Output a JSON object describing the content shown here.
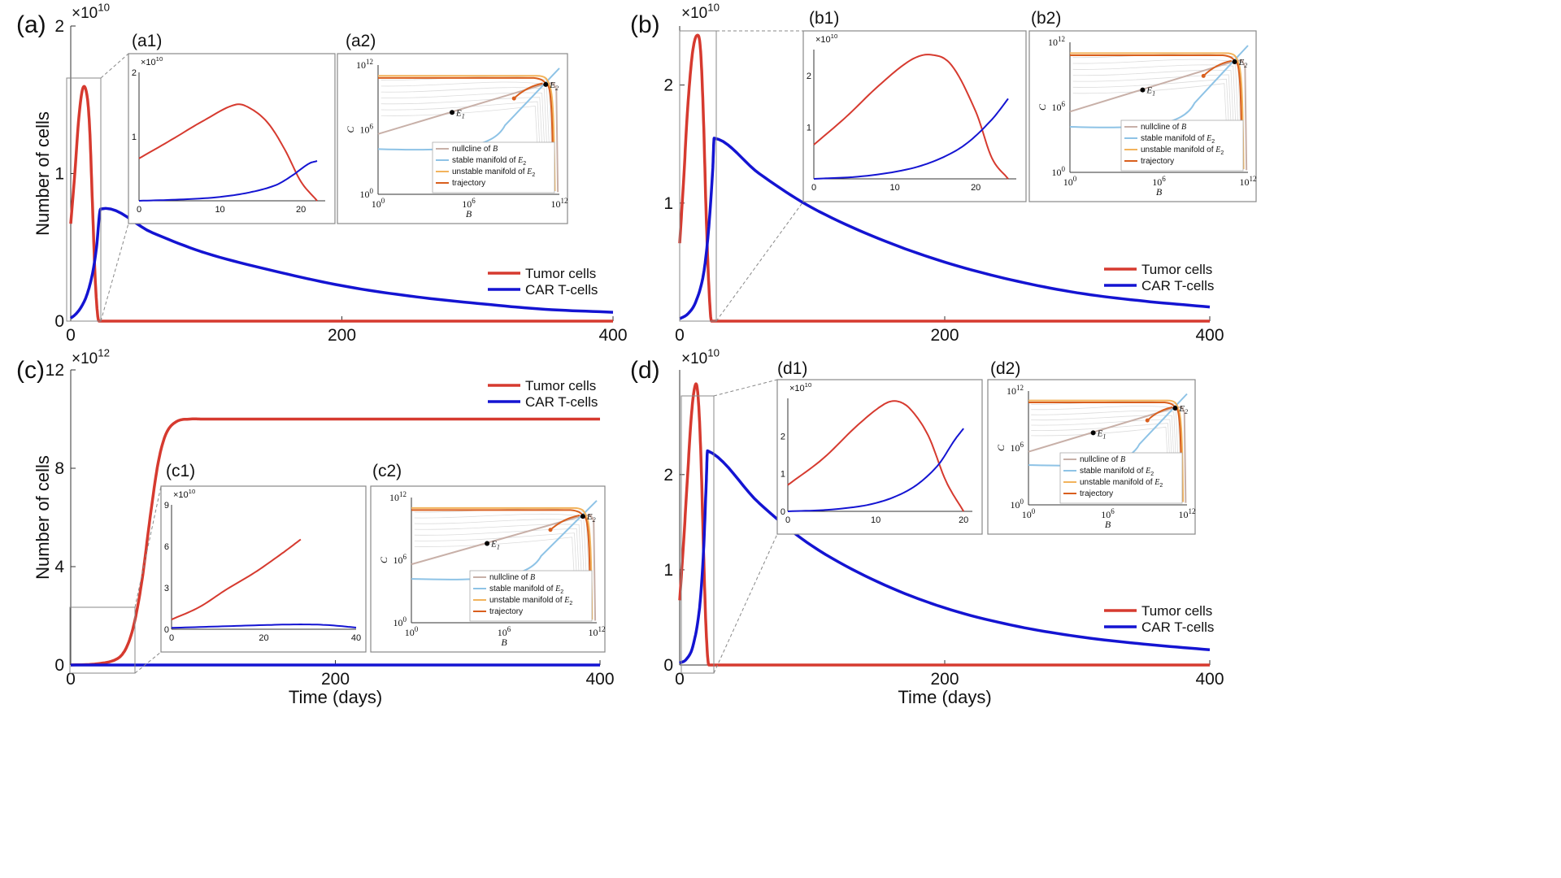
{
  "colors": {
    "tumor": "#d63a2f",
    "car": "#1414d2",
    "nullcline": "#c8b0a8",
    "stable": "#8ec3e6",
    "unstable": "#f2b35c",
    "trajectory": "#d95f1e",
    "box": "#888888",
    "axis": "#333333"
  },
  "chart_data": [
    {
      "panel": "(a)",
      "type": "line",
      "ylabel": "Number of cells",
      "xlabel": "",
      "exponent_base": "×10",
      "exponent": "10",
      "xlim": [
        0,
        400
      ],
      "ylim": [
        0,
        2
      ],
      "xticks": [
        "0",
        "200",
        "400"
      ],
      "yticks": [
        "0",
        "1",
        "2"
      ],
      "legend": [
        "Tumor cells",
        "CAR T-cells"
      ],
      "legend_position": "bottom-right",
      "zoom_xlim": [
        0,
        22
      ],
      "series": [
        {
          "name": "Tumor cells",
          "x": [
            0,
            3,
            6,
            9,
            12,
            14,
            16,
            18,
            20,
            22,
            400
          ],
          "values": [
            0.66,
            1.0,
            1.38,
            1.58,
            1.53,
            1.3,
            0.8,
            0.3,
            0.03,
            0.0,
            0.0
          ]
        },
        {
          "name": "CAR T-cells",
          "x": [
            0,
            4,
            8,
            12,
            16,
            19,
            22,
            60,
            100,
            150,
            200,
            250,
            300,
            350,
            400
          ],
          "values": [
            0.02,
            0.05,
            0.1,
            0.18,
            0.32,
            0.5,
            0.76,
            0.6,
            0.46,
            0.34,
            0.24,
            0.17,
            0.12,
            0.08,
            0.06
          ]
        }
      ],
      "insets": [
        {
          "label": "(a1)",
          "type": "line",
          "exponent": "10",
          "xlim": [
            0,
            23
          ],
          "ylim": [
            0,
            2
          ],
          "xticks": [
            "0",
            "10",
            "20"
          ],
          "yticks": [
            "1",
            "2"
          ],
          "series": [
            {
              "name": "Tumor cells",
              "x": [
                0,
                4,
                8,
                12,
                14,
                16,
                18,
                20,
                22
              ],
              "values": [
                0.66,
                0.95,
                1.25,
                1.5,
                1.42,
                1.2,
                0.8,
                0.3,
                0.0
              ]
            },
            {
              "name": "CAR T-cells",
              "x": [
                0,
                5,
                10,
                14,
                17,
                19,
                21,
                22
              ],
              "values": [
                0.0,
                0.02,
                0.06,
                0.14,
                0.25,
                0.4,
                0.58,
                0.62
              ]
            }
          ]
        },
        {
          "label": "(a2)",
          "type": "phase",
          "xlabel": "B",
          "ylabel": "C",
          "xticks": [
            "10",
            "10",
            "10"
          ],
          "xtick_powers": [
            "0",
            "6",
            "12"
          ],
          "yticks": [
            "10",
            "10",
            "10"
          ],
          "ytick_powers": [
            "0",
            "6",
            "12"
          ],
          "point_labels": [
            "E",
            "E"
          ],
          "point_subs": [
            "1",
            "2"
          ],
          "legend": [
            {
              "text": "nullcline of ",
              "var": "B",
              "sub": ""
            },
            {
              "text": "stable manifold of ",
              "var": "E",
              "sub": "2"
            },
            {
              "text": "unstable manifold of ",
              "var": "E",
              "sub": "2"
            },
            {
              "text": "trajectory",
              "var": "",
              "sub": ""
            }
          ]
        }
      ]
    },
    {
      "panel": "(b)",
      "type": "line",
      "ylabel": "",
      "xlabel": "",
      "exponent_base": "×10",
      "exponent": "10",
      "xlim": [
        0,
        400
      ],
      "ylim": [
        0,
        2.5
      ],
      "xticks": [
        "0",
        "200",
        "400"
      ],
      "yticks": [
        "1",
        "2"
      ],
      "legend": [
        "Tumor cells",
        "CAR T-cells"
      ],
      "legend_position": "bottom-right",
      "zoom_xlim": [
        0,
        28
      ],
      "series": [
        {
          "name": "Tumor cells",
          "x": [
            0,
            3,
            6,
            10,
            14,
            16,
            18,
            20,
            22,
            24,
            400
          ],
          "values": [
            0.66,
            1.2,
            1.8,
            2.3,
            2.42,
            2.25,
            1.7,
            0.9,
            0.3,
            0.0,
            0.0
          ]
        },
        {
          "name": "CAR T-cells",
          "x": [
            0,
            6,
            12,
            18,
            22,
            25,
            26,
            60,
            100,
            150,
            200,
            250,
            300,
            350,
            400
          ],
          "values": [
            0.02,
            0.06,
            0.16,
            0.4,
            0.8,
            1.3,
            1.55,
            1.25,
            0.96,
            0.7,
            0.5,
            0.35,
            0.24,
            0.17,
            0.12
          ]
        }
      ],
      "insets": [
        {
          "label": "(b1)",
          "type": "line",
          "exponent": "10",
          "xlim": [
            0,
            25
          ],
          "ylim": [
            0,
            2.5
          ],
          "xticks": [
            "0",
            "10",
            "20"
          ],
          "yticks": [
            "1",
            "2"
          ],
          "series": [
            {
              "name": "Tumor cells",
              "x": [
                0,
                4,
                8,
                12,
                14.5,
                17,
                20,
                22,
                24
              ],
              "values": [
                0.66,
                1.2,
                1.8,
                2.3,
                2.4,
                2.2,
                1.3,
                0.4,
                0.0
              ]
            },
            {
              "name": "CAR T-cells",
              "x": [
                0,
                6,
                12,
                16,
                19,
                22,
                24
              ],
              "values": [
                0.0,
                0.05,
                0.2,
                0.42,
                0.7,
                1.15,
                1.55
              ]
            }
          ]
        },
        {
          "label": "(b2)",
          "type": "phase",
          "xlabel": "B",
          "ylabel": "C",
          "xticks": [
            "10",
            "10",
            "10"
          ],
          "xtick_powers": [
            "0",
            "6",
            "12"
          ],
          "yticks": [
            "10",
            "10",
            "10"
          ],
          "ytick_powers": [
            "0",
            "6",
            "12"
          ],
          "point_labels": [
            "E",
            "E"
          ],
          "point_subs": [
            "1",
            "2"
          ],
          "legend": [
            {
              "text": "nullcline of ",
              "var": "B",
              "sub": ""
            },
            {
              "text": "stable manifold of ",
              "var": "E",
              "sub": "2"
            },
            {
              "text": "unstable manifold of ",
              "var": "E",
              "sub": "2"
            },
            {
              "text": "trajectory",
              "var": "",
              "sub": ""
            }
          ]
        }
      ]
    },
    {
      "panel": "(c)",
      "type": "line",
      "ylabel": "Number of cells",
      "xlabel": "Time (days)",
      "exponent_base": "×10",
      "exponent": "12",
      "xlim": [
        0,
        400
      ],
      "ylim": [
        0,
        12
      ],
      "xticks": [
        "0",
        "200",
        "400"
      ],
      "yticks": [
        "0",
        "4",
        "8",
        "12"
      ],
      "legend": [
        "Tumor cells",
        "CAR T-cells"
      ],
      "legend_position": "top-right",
      "zoom_xlim": [
        0,
        49
      ],
      "zoom_ylim": [
        0,
        2.35
      ],
      "series": [
        {
          "name": "Tumor cells",
          "x": [
            0,
            20,
            35,
            42,
            48,
            54,
            60,
            66,
            72,
            80,
            90,
            100,
            400
          ],
          "values": [
            0.0,
            0.05,
            0.25,
            0.7,
            1.7,
            3.5,
            6.0,
            8.2,
            9.4,
            9.9,
            10.0,
            10.0,
            10.0
          ]
        },
        {
          "name": "CAR T-cells",
          "x": [
            0,
            400
          ],
          "values": [
            0.0,
            0.0
          ]
        }
      ],
      "insets": [
        {
          "label": "(c1)",
          "type": "line",
          "exponent": "10",
          "xlim": [
            0,
            40
          ],
          "ylim": [
            0,
            9
          ],
          "xticks": [
            "0",
            "20",
            "40"
          ],
          "yticks": [
            "0",
            "3",
            "6",
            "9"
          ],
          "series": [
            {
              "name": "Tumor cells",
              "x": [
                0,
                6,
                12,
                18,
                24,
                28
              ],
              "values": [
                0.7,
                1.6,
                2.9,
                4.1,
                5.5,
                6.5
              ]
            },
            {
              "name": "CAR T-cells",
              "x": [
                0,
                10,
                20,
                28,
                34,
                40
              ],
              "values": [
                0.1,
                0.2,
                0.3,
                0.35,
                0.3,
                0.12
              ]
            }
          ]
        },
        {
          "label": "(c2)",
          "type": "phase",
          "xlabel": "B",
          "ylabel": "C",
          "xticks": [
            "10",
            "10",
            "10"
          ],
          "xtick_powers": [
            "0",
            "6",
            "12"
          ],
          "yticks": [
            "10",
            "10",
            "10"
          ],
          "ytick_powers": [
            "0",
            "6",
            "12"
          ],
          "point_labels": [
            "E",
            "E"
          ],
          "point_subs": [
            "1",
            "2"
          ],
          "legend": [
            {
              "text": "nullcline of ",
              "var": "B",
              "sub": ""
            },
            {
              "text": "stable manifold of ",
              "var": "E",
              "sub": "2"
            },
            {
              "text": "unstable manifold of ",
              "var": "E",
              "sub": "2"
            },
            {
              "text": "trajectory",
              "var": "",
              "sub": ""
            }
          ]
        }
      ]
    },
    {
      "panel": "(d)",
      "type": "line",
      "ylabel": "",
      "xlabel": "Time (days)",
      "exponent_base": "×10",
      "exponent": "10",
      "xlim": [
        0,
        400
      ],
      "ylim": [
        0,
        3.1
      ],
      "xticks": [
        "0",
        "200",
        "400"
      ],
      "yticks": [
        "0",
        "1",
        "2"
      ],
      "legend": [
        "Tumor cells",
        "CAR T-cells"
      ],
      "legend_position": "bottom-right",
      "zoom_xlim": [
        0,
        24
      ],
      "series": [
        {
          "name": "Tumor cells",
          "x": [
            0,
            3,
            6,
            9,
            12,
            14,
            16,
            18,
            20,
            22,
            400
          ],
          "values": [
            0.68,
            1.3,
            2.0,
            2.65,
            2.95,
            2.8,
            2.2,
            1.2,
            0.35,
            0.0,
            0.0
          ]
        },
        {
          "name": "CAR T-cells",
          "x": [
            0,
            5,
            10,
            15,
            18,
            20,
            21,
            60,
            100,
            150,
            200,
            250,
            300,
            350,
            400
          ],
          "values": [
            0.02,
            0.06,
            0.2,
            0.6,
            1.2,
            1.9,
            2.25,
            1.7,
            1.25,
            0.87,
            0.6,
            0.42,
            0.3,
            0.22,
            0.16
          ]
        }
      ],
      "insets": [
        {
          "label": "(d1)",
          "type": "line",
          "exponent": "10",
          "xlim": [
            0,
            21
          ],
          "ylim": [
            0,
            3
          ],
          "xticks": [
            "0",
            "10",
            "20"
          ],
          "yticks": [
            "0",
            "1",
            "2"
          ],
          "series": [
            {
              "name": "Tumor cells",
              "x": [
                0,
                4,
                8,
                11,
                12.5,
                14,
                16,
                18,
                20
              ],
              "values": [
                0.7,
                1.4,
                2.3,
                2.85,
                2.92,
                2.7,
                2.0,
                0.8,
                0.0
              ]
            },
            {
              "name": "CAR T-cells",
              "x": [
                0,
                5,
                10,
                14,
                17,
                19,
                20
              ],
              "values": [
                0.0,
                0.05,
                0.22,
                0.6,
                1.2,
                1.9,
                2.2
              ]
            }
          ]
        },
        {
          "label": "(d2)",
          "type": "phase",
          "xlabel": "B",
          "ylabel": "C",
          "xticks": [
            "10",
            "10",
            "10"
          ],
          "xtick_powers": [
            "0",
            "6",
            "12"
          ],
          "yticks": [
            "10",
            "10",
            "10"
          ],
          "ytick_powers": [
            "0",
            "6",
            "12"
          ],
          "point_labels": [
            "E",
            "E"
          ],
          "point_subs": [
            "1",
            "2"
          ],
          "legend": [
            {
              "text": "nullcline of ",
              "var": "B",
              "sub": ""
            },
            {
              "text": "stable manifold of ",
              "var": "E",
              "sub": "2"
            },
            {
              "text": "unstable manifold of ",
              "var": "E",
              "sub": "2"
            },
            {
              "text": "trajectory",
              "var": "",
              "sub": ""
            }
          ]
        }
      ]
    }
  ]
}
